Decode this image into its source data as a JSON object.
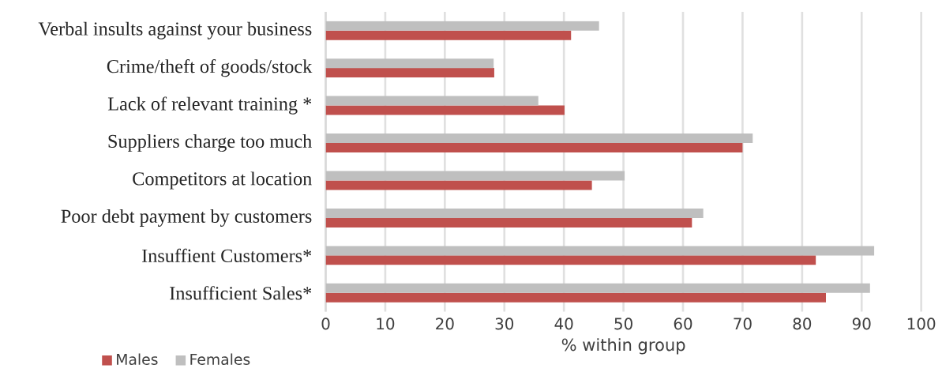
{
  "chart_data": {
    "type": "bar",
    "orientation": "horizontal",
    "xlabel": "% within group",
    "categories": [
      "Verbal insults against your business",
      "Crime/theft of goods/stock",
      "Lack of relevant training *",
      "Suppliers charge too much",
      "Competitors at location",
      "Poor debt payment by customers",
      "Insuffient Customers*",
      "Insufficient Sales*"
    ],
    "series": [
      {
        "name": "Males",
        "color": "#c0504d",
        "values": [
          41.2,
          28.3,
          40.1,
          70.0,
          44.7,
          61.5,
          82.3,
          84.0
        ]
      },
      {
        "name": "Females",
        "color": "#bfbfbf",
        "values": [
          45.9,
          28.2,
          35.7,
          71.7,
          50.2,
          63.4,
          92.1,
          91.4
        ]
      }
    ],
    "xlim": [
      0,
      100
    ],
    "xticks": [
      0,
      10,
      20,
      30,
      40,
      50,
      60,
      70,
      80,
      90,
      100
    ],
    "grid": "x",
    "legend": "bottom left"
  }
}
